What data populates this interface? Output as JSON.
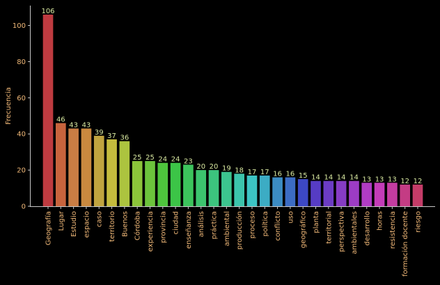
{
  "chart_data": {
    "type": "bar",
    "title": "",
    "xlabel": "",
    "ylabel": "Frecuencia",
    "ylim": [
      0,
      111
    ],
    "yticks": [
      0,
      20,
      40,
      60,
      80,
      100
    ],
    "grid": false,
    "categories": [
      "Geografía",
      "Lugar",
      "Estudio",
      "espacio",
      "caso",
      "territorio",
      "Buenos",
      "Córdoba",
      "experiencia",
      "provincia",
      "ciudad",
      "enseñanza",
      "análisis",
      "práctica",
      "ambiental",
      "producción",
      "proceso",
      "política",
      "conflicto",
      "uso",
      "geográfico",
      "planta",
      "territorial",
      "perspectiva",
      "ambientales",
      "desarrollo",
      "horas",
      "resistencia",
      "formación docente",
      "riesgo"
    ],
    "values": [
      106,
      46,
      43,
      43,
      39,
      37,
      36,
      25,
      25,
      24,
      24,
      23,
      20,
      20,
      19,
      18,
      17,
      17,
      16,
      16,
      15,
      14,
      14,
      14,
      14,
      13,
      13,
      13,
      12,
      12
    ],
    "colors": [
      "#bf3b40",
      "#c8643d",
      "#c97d44",
      "#c9893f",
      "#c0a43f",
      "#c4bc3d",
      "#acc43f",
      "#8cc43a",
      "#6cc43c",
      "#4ec43d",
      "#3cc447",
      "#3cc45c",
      "#3cc46e",
      "#3cc47e",
      "#3cc48f",
      "#3cc4ac",
      "#3cc4c4",
      "#3cacc4",
      "#3c8cc4",
      "#3c6cc4",
      "#3c48c4",
      "#563cc4",
      "#6c3cc4",
      "#863cc4",
      "#9c3cc4",
      "#b03cc4",
      "#c43cb8",
      "#c43ca0",
      "#c43c84",
      "#c43c68"
    ]
  }
}
